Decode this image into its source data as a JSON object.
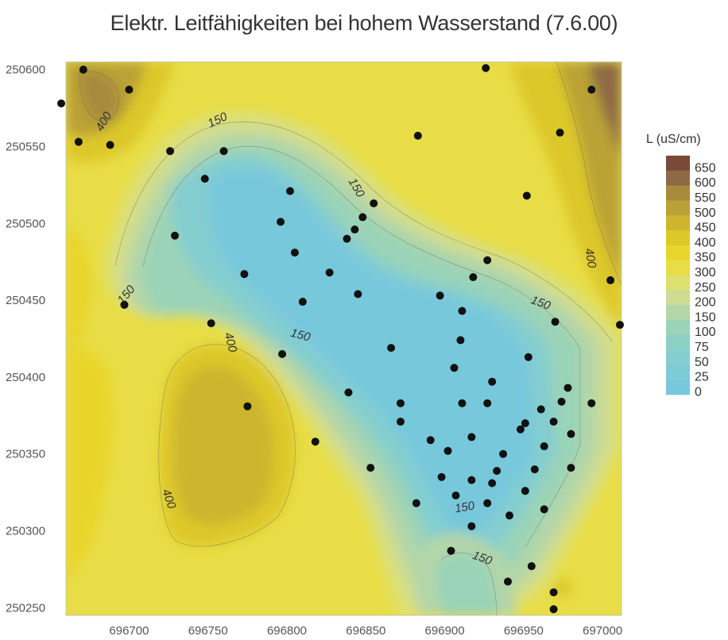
{
  "chart_data": {
    "type": "heatmap",
    "title": "Elektr. Leitfähigkeiten bei hohem Wasserstand (7.6.00)",
    "xlabel": "",
    "ylabel": "",
    "xlim": [
      696660,
      697012
    ],
    "ylim": [
      250245,
      250605
    ],
    "x_ticks": [
      "696700",
      "696750",
      "696800",
      "696850",
      "696900",
      "696950",
      "697000"
    ],
    "y_ticks": [
      "250250",
      "250300",
      "250350",
      "250400",
      "250450",
      "250500",
      "250550",
      "250600"
    ],
    "legend": {
      "title": "L (uS/cm)",
      "placement": "right",
      "levels": [
        {
          "label": "650",
          "color": "#7a4a38"
        },
        {
          "label": "600",
          "color": "#8e6a44"
        },
        {
          "label": "550",
          "color": "#a88a3c"
        },
        {
          "label": "500",
          "color": "#baa236"
        },
        {
          "label": "450",
          "color": "#cdb52e"
        },
        {
          "label": "400",
          "color": "#ddc82a"
        },
        {
          "label": "350",
          "color": "#e9d52c"
        },
        {
          "label": "300",
          "color": "#e8dd46"
        },
        {
          "label": "250",
          "color": "#dde070"
        },
        {
          "label": "200",
          "color": "#cfdc92"
        },
        {
          "label": "150",
          "color": "#b2d6a8"
        },
        {
          "label": "100",
          "color": "#9ad3b8"
        },
        {
          "label": "75",
          "color": "#8cd0c4"
        },
        {
          "label": "50",
          "color": "#84ced0"
        },
        {
          "label": "25",
          "color": "#7ecbd8"
        },
        {
          "label": "0",
          "color": "#78c8dc"
        }
      ]
    },
    "contour_labels": [
      {
        "text": "150",
        "x": 696757,
        "y": 250565,
        "angle": -25
      },
      {
        "text": "400",
        "x": 696686,
        "y": 250565,
        "angle": -60
      },
      {
        "text": "150",
        "x": 696842,
        "y": 250522,
        "angle": 60
      },
      {
        "text": "400",
        "x": 696990,
        "y": 250477,
        "angle": 80
      },
      {
        "text": "150",
        "x": 696700,
        "y": 250452,
        "angle": -50
      },
      {
        "text": "150",
        "x": 696960,
        "y": 250446,
        "angle": 20
      },
      {
        "text": "400",
        "x": 696762,
        "y": 250422,
        "angle": 75
      },
      {
        "text": "150",
        "x": 696808,
        "y": 250425,
        "angle": 15
      },
      {
        "text": "400",
        "x": 696723,
        "y": 250320,
        "angle": 70
      },
      {
        "text": "150",
        "x": 696913,
        "y": 250313,
        "angle": -10
      },
      {
        "text": "150",
        "x": 696923,
        "y": 250280,
        "angle": 20
      }
    ],
    "points": [
      [
        696671,
        250600
      ],
      [
        696700,
        250587
      ],
      [
        696657,
        250578
      ],
      [
        696668,
        250553
      ],
      [
        696688,
        250551
      ],
      [
        696726,
        250547
      ],
      [
        696760,
        250547
      ],
      [
        696883,
        250557
      ],
      [
        696926,
        250601
      ],
      [
        696993,
        250587
      ],
      [
        696973,
        250559
      ],
      [
        696952,
        250518
      ],
      [
        696748,
        250529
      ],
      [
        696802,
        250521
      ],
      [
        696855,
        250513
      ],
      [
        696796,
        250501
      ],
      [
        696848,
        250504
      ],
      [
        696729,
        250492
      ],
      [
        696843,
        250496
      ],
      [
        696805,
        250481
      ],
      [
        696838,
        250490
      ],
      [
        696927,
        250476
      ],
      [
        696773,
        250467
      ],
      [
        696827,
        250468
      ],
      [
        696918,
        250465
      ],
      [
        697005,
        250463
      ],
      [
        696697,
        250447
      ],
      [
        696810,
        250449
      ],
      [
        696845,
        250454
      ],
      [
        696897,
        250453
      ],
      [
        696911,
        250443
      ],
      [
        696752,
        250435
      ],
      [
        696970,
        250436
      ],
      [
        697011,
        250434
      ],
      [
        696910,
        250424
      ],
      [
        696866,
        250419
      ],
      [
        696797,
        250415
      ],
      [
        696953,
        250413
      ],
      [
        696906,
        250406
      ],
      [
        696930,
        250397
      ],
      [
        696978,
        250393
      ],
      [
        696839,
        250390
      ],
      [
        696775,
        250381
      ],
      [
        696872,
        250383
      ],
      [
        696911,
        250383
      ],
      [
        696927,
        250383
      ],
      [
        696974,
        250384
      ],
      [
        696993,
        250383
      ],
      [
        696961,
        250379
      ],
      [
        696872,
        250371
      ],
      [
        696951,
        250370
      ],
      [
        696948,
        250366
      ],
      [
        696969,
        250371
      ],
      [
        696980,
        250363
      ],
      [
        696818,
        250358
      ],
      [
        696891,
        250359
      ],
      [
        696917,
        250361
      ],
      [
        696963,
        250355
      ],
      [
        696902,
        250352
      ],
      [
        696937,
        250350
      ],
      [
        696933,
        250339
      ],
      [
        696957,
        250340
      ],
      [
        696980,
        250341
      ],
      [
        696853,
        250341
      ],
      [
        696898,
        250335
      ],
      [
        696917,
        250333
      ],
      [
        696930,
        250331
      ],
      [
        696951,
        250326
      ],
      [
        696907,
        250323
      ],
      [
        696927,
        250318
      ],
      [
        696882,
        250318
      ],
      [
        696941,
        250310
      ],
      [
        696963,
        250314
      ],
      [
        696917,
        250303
      ],
      [
        696904,
        250287
      ],
      [
        696955,
        250277
      ],
      [
        696940,
        250267
      ],
      [
        696969,
        250260
      ],
      [
        696969,
        250249
      ]
    ]
  }
}
